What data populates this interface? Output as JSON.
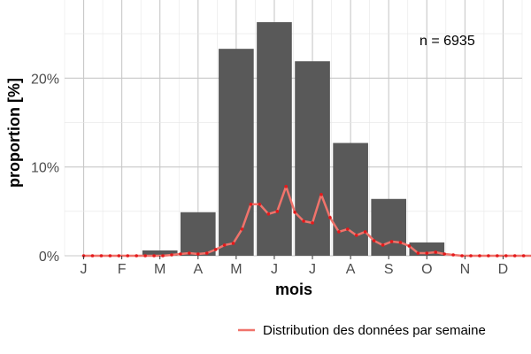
{
  "chart_data": {
    "type": "bar",
    "categories": [
      "J",
      "F",
      "M",
      "A",
      "M",
      "J",
      "J",
      "A",
      "S",
      "O",
      "N",
      "D"
    ],
    "values": [
      0,
      0,
      0.6,
      4.9,
      23.3,
      26.3,
      21.9,
      12.7,
      6.4,
      1.5,
      0,
      0
    ],
    "ylabel": "proportion [%]",
    "xlabel": "mois",
    "ylim": [
      0,
      28
    ],
    "yticks": [
      0,
      10,
      20
    ],
    "ytick_labels": [
      "0%",
      "10%",
      "20%"
    ],
    "annotation": "n = 6935",
    "grid": true,
    "bar_color": "#595959",
    "line_series": {
      "name": "Distribution des données par semaine",
      "color": "#f0736b",
      "point_color": "#e31a1c",
      "weeks": [
        1,
        2,
        3,
        4,
        5,
        6,
        7,
        8,
        9,
        10,
        11,
        12,
        13,
        14,
        15,
        16,
        17,
        18,
        19,
        20,
        21,
        22,
        23,
        24,
        25,
        26,
        27,
        28,
        29,
        30,
        31,
        32,
        33,
        34,
        35,
        36,
        37,
        38,
        39,
        40,
        41,
        42,
        43,
        44,
        45,
        46,
        47,
        48,
        49,
        50,
        51,
        52
      ],
      "values": [
        0,
        0,
        0,
        0,
        0,
        0,
        0,
        0,
        0,
        0,
        0.1,
        0.2,
        0.3,
        0.2,
        0.3,
        0.7,
        1.2,
        1.4,
        3.0,
        5.8,
        5.8,
        4.7,
        5.0,
        7.8,
        4.9,
        3.9,
        3.7,
        6.9,
        4.3,
        2.7,
        3.0,
        2.3,
        2.7,
        1.7,
        1.2,
        1.6,
        1.5,
        1.1,
        0.3,
        0.3,
        0.4,
        0.2,
        0.1,
        0,
        0,
        0,
        0,
        0,
        0,
        0,
        0,
        0
      ]
    },
    "legend": {
      "position": "bottom-right",
      "label": "Distribution des données par semaine"
    }
  }
}
